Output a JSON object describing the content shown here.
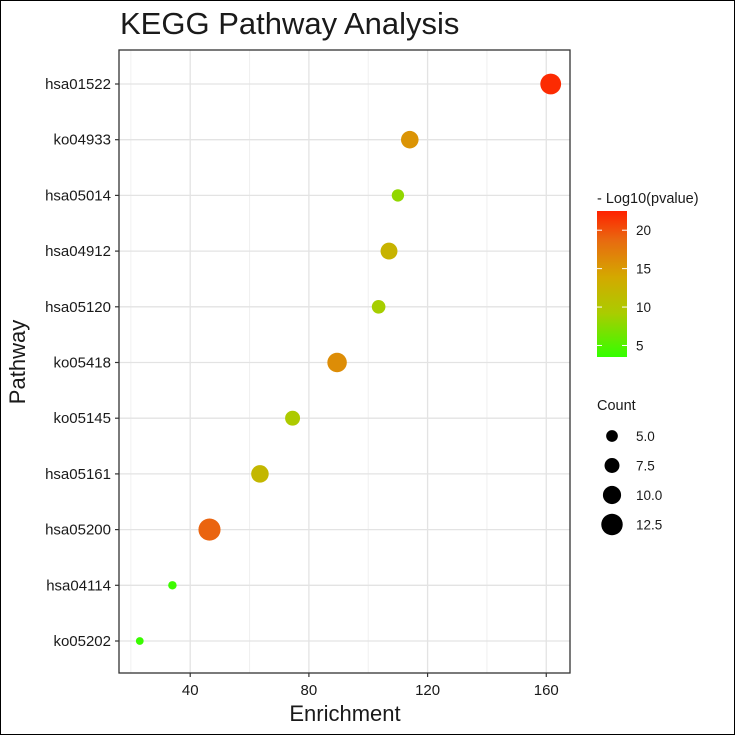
{
  "chart_data": {
    "type": "scatter",
    "title": "KEGG Pathway Analysis",
    "xlabel": "Enrichment",
    "ylabel": "Pathway",
    "xlim": [
      16,
      168
    ],
    "xticks": [
      40,
      80,
      120,
      160
    ],
    "x_tick_labels": [
      "40",
      "80",
      "120",
      "160"
    ],
    "grid": true,
    "categories": [
      "hsa01522",
      "ko04933",
      "hsa05014",
      "hsa04912",
      "hsa05120",
      "ko05418",
      "ko05145",
      "hsa05161",
      "hsa05200",
      "hsa04114",
      "ko05202"
    ],
    "points": [
      {
        "pathway": "hsa01522",
        "enrichment": 161.5,
        "count": 12.0,
        "neg_log10_p": 22.0
      },
      {
        "pathway": "ko04933",
        "enrichment": 114.0,
        "count": 9.5,
        "neg_log10_p": 15.5
      },
      {
        "pathway": "hsa05014",
        "enrichment": 110.0,
        "count": 5.5,
        "neg_log10_p": 8.0
      },
      {
        "pathway": "hsa04912",
        "enrichment": 107.0,
        "count": 9.0,
        "neg_log10_p": 12.5
      },
      {
        "pathway": "hsa05120",
        "enrichment": 103.5,
        "count": 6.5,
        "neg_log10_p": 9.0
      },
      {
        "pathway": "ko05418",
        "enrichment": 89.5,
        "count": 11.0,
        "neg_log10_p": 16.0
      },
      {
        "pathway": "ko05145",
        "enrichment": 74.5,
        "count": 7.5,
        "neg_log10_p": 9.5
      },
      {
        "pathway": "hsa05161",
        "enrichment": 63.5,
        "count": 9.5,
        "neg_log10_p": 12.0
      },
      {
        "pathway": "hsa05200",
        "enrichment": 46.5,
        "count": 13.0,
        "neg_log10_p": 19.0
      },
      {
        "pathway": "hsa04114",
        "enrichment": 34.0,
        "count": 2.5,
        "neg_log10_p": 4.0
      },
      {
        "pathway": "ko05202",
        "enrichment": 23.0,
        "count": 2.0,
        "neg_log10_p": 3.8
      }
    ],
    "color_legend": {
      "title": "- Log10(pvalue)",
      "range": [
        3.5,
        22.5
      ],
      "ticks": [
        5,
        10,
        15,
        20
      ],
      "tick_labels": [
        "5",
        "10",
        "15",
        "20"
      ],
      "colors": [
        "#33ff00",
        "#aacc00",
        "#d4a800",
        "#e86a10",
        "#ff2200"
      ]
    },
    "size_legend": {
      "title": "Count",
      "values": [
        5.0,
        7.5,
        10.0,
        12.5
      ],
      "labels": [
        "5.0",
        "7.5",
        "10.0",
        "12.5"
      ]
    },
    "legend_placement": "right"
  }
}
